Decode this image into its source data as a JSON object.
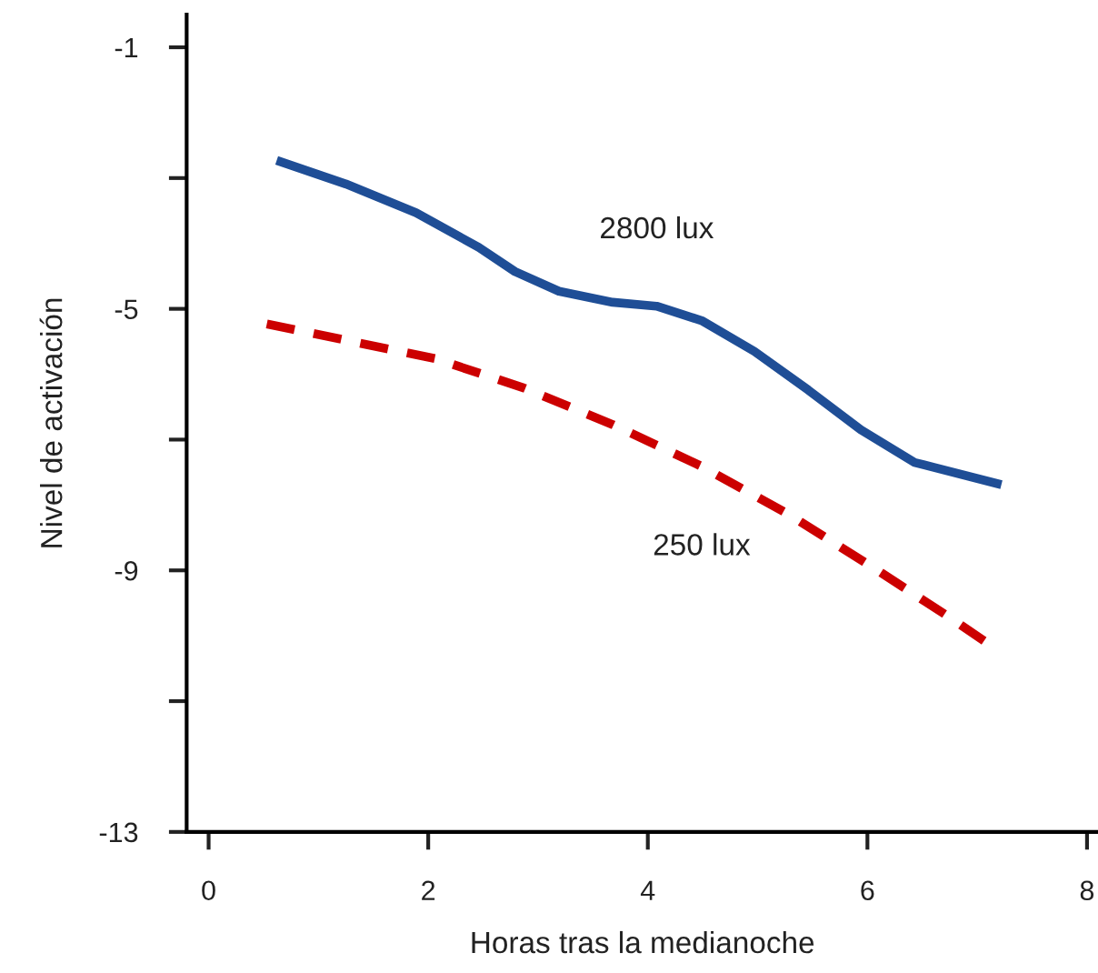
{
  "chart_data": {
    "type": "line",
    "xlabel": "Horas tras la medianoche",
    "ylabel": "Nivel de activación",
    "xlim": [
      -0.2,
      8.1
    ],
    "xticks": [
      0,
      2,
      4,
      6,
      8
    ],
    "ylim": [
      -13,
      -0.5
    ],
    "yticks": [
      -1,
      {
        "value": -3,
        "label": null
      },
      -5,
      {
        "value": -7,
        "label": null
      },
      -9,
      {
        "value": -11,
        "label": null
      },
      -13
    ],
    "grid": false,
    "legend": false,
    "series": [
      {
        "name": "2800 lux",
        "color": "#1f4e96",
        "line_style": "solid",
        "x": [
          0.62,
          1.25,
          1.89,
          2.46,
          2.79,
          3.19,
          3.68,
          4.08,
          4.49,
          4.97,
          5.46,
          5.94,
          6.43,
          7.22
        ],
        "values": [
          -2.73,
          -3.09,
          -3.53,
          -4.06,
          -4.43,
          -4.73,
          -4.9,
          -4.96,
          -5.18,
          -5.65,
          -6.24,
          -6.85,
          -7.35,
          -7.69
        ]
      },
      {
        "name": "250 lux",
        "color": "#cc0000",
        "line_style": "dashed",
        "x": [
          0.53,
          1.25,
          2.06,
          2.87,
          3.68,
          4.49,
          5.3,
          6.11,
          6.75,
          7.09
        ],
        "values": [
          -5.23,
          -5.48,
          -5.76,
          -6.21,
          -6.77,
          -7.41,
          -8.16,
          -9.02,
          -9.72,
          -10.11
        ]
      }
    ]
  }
}
